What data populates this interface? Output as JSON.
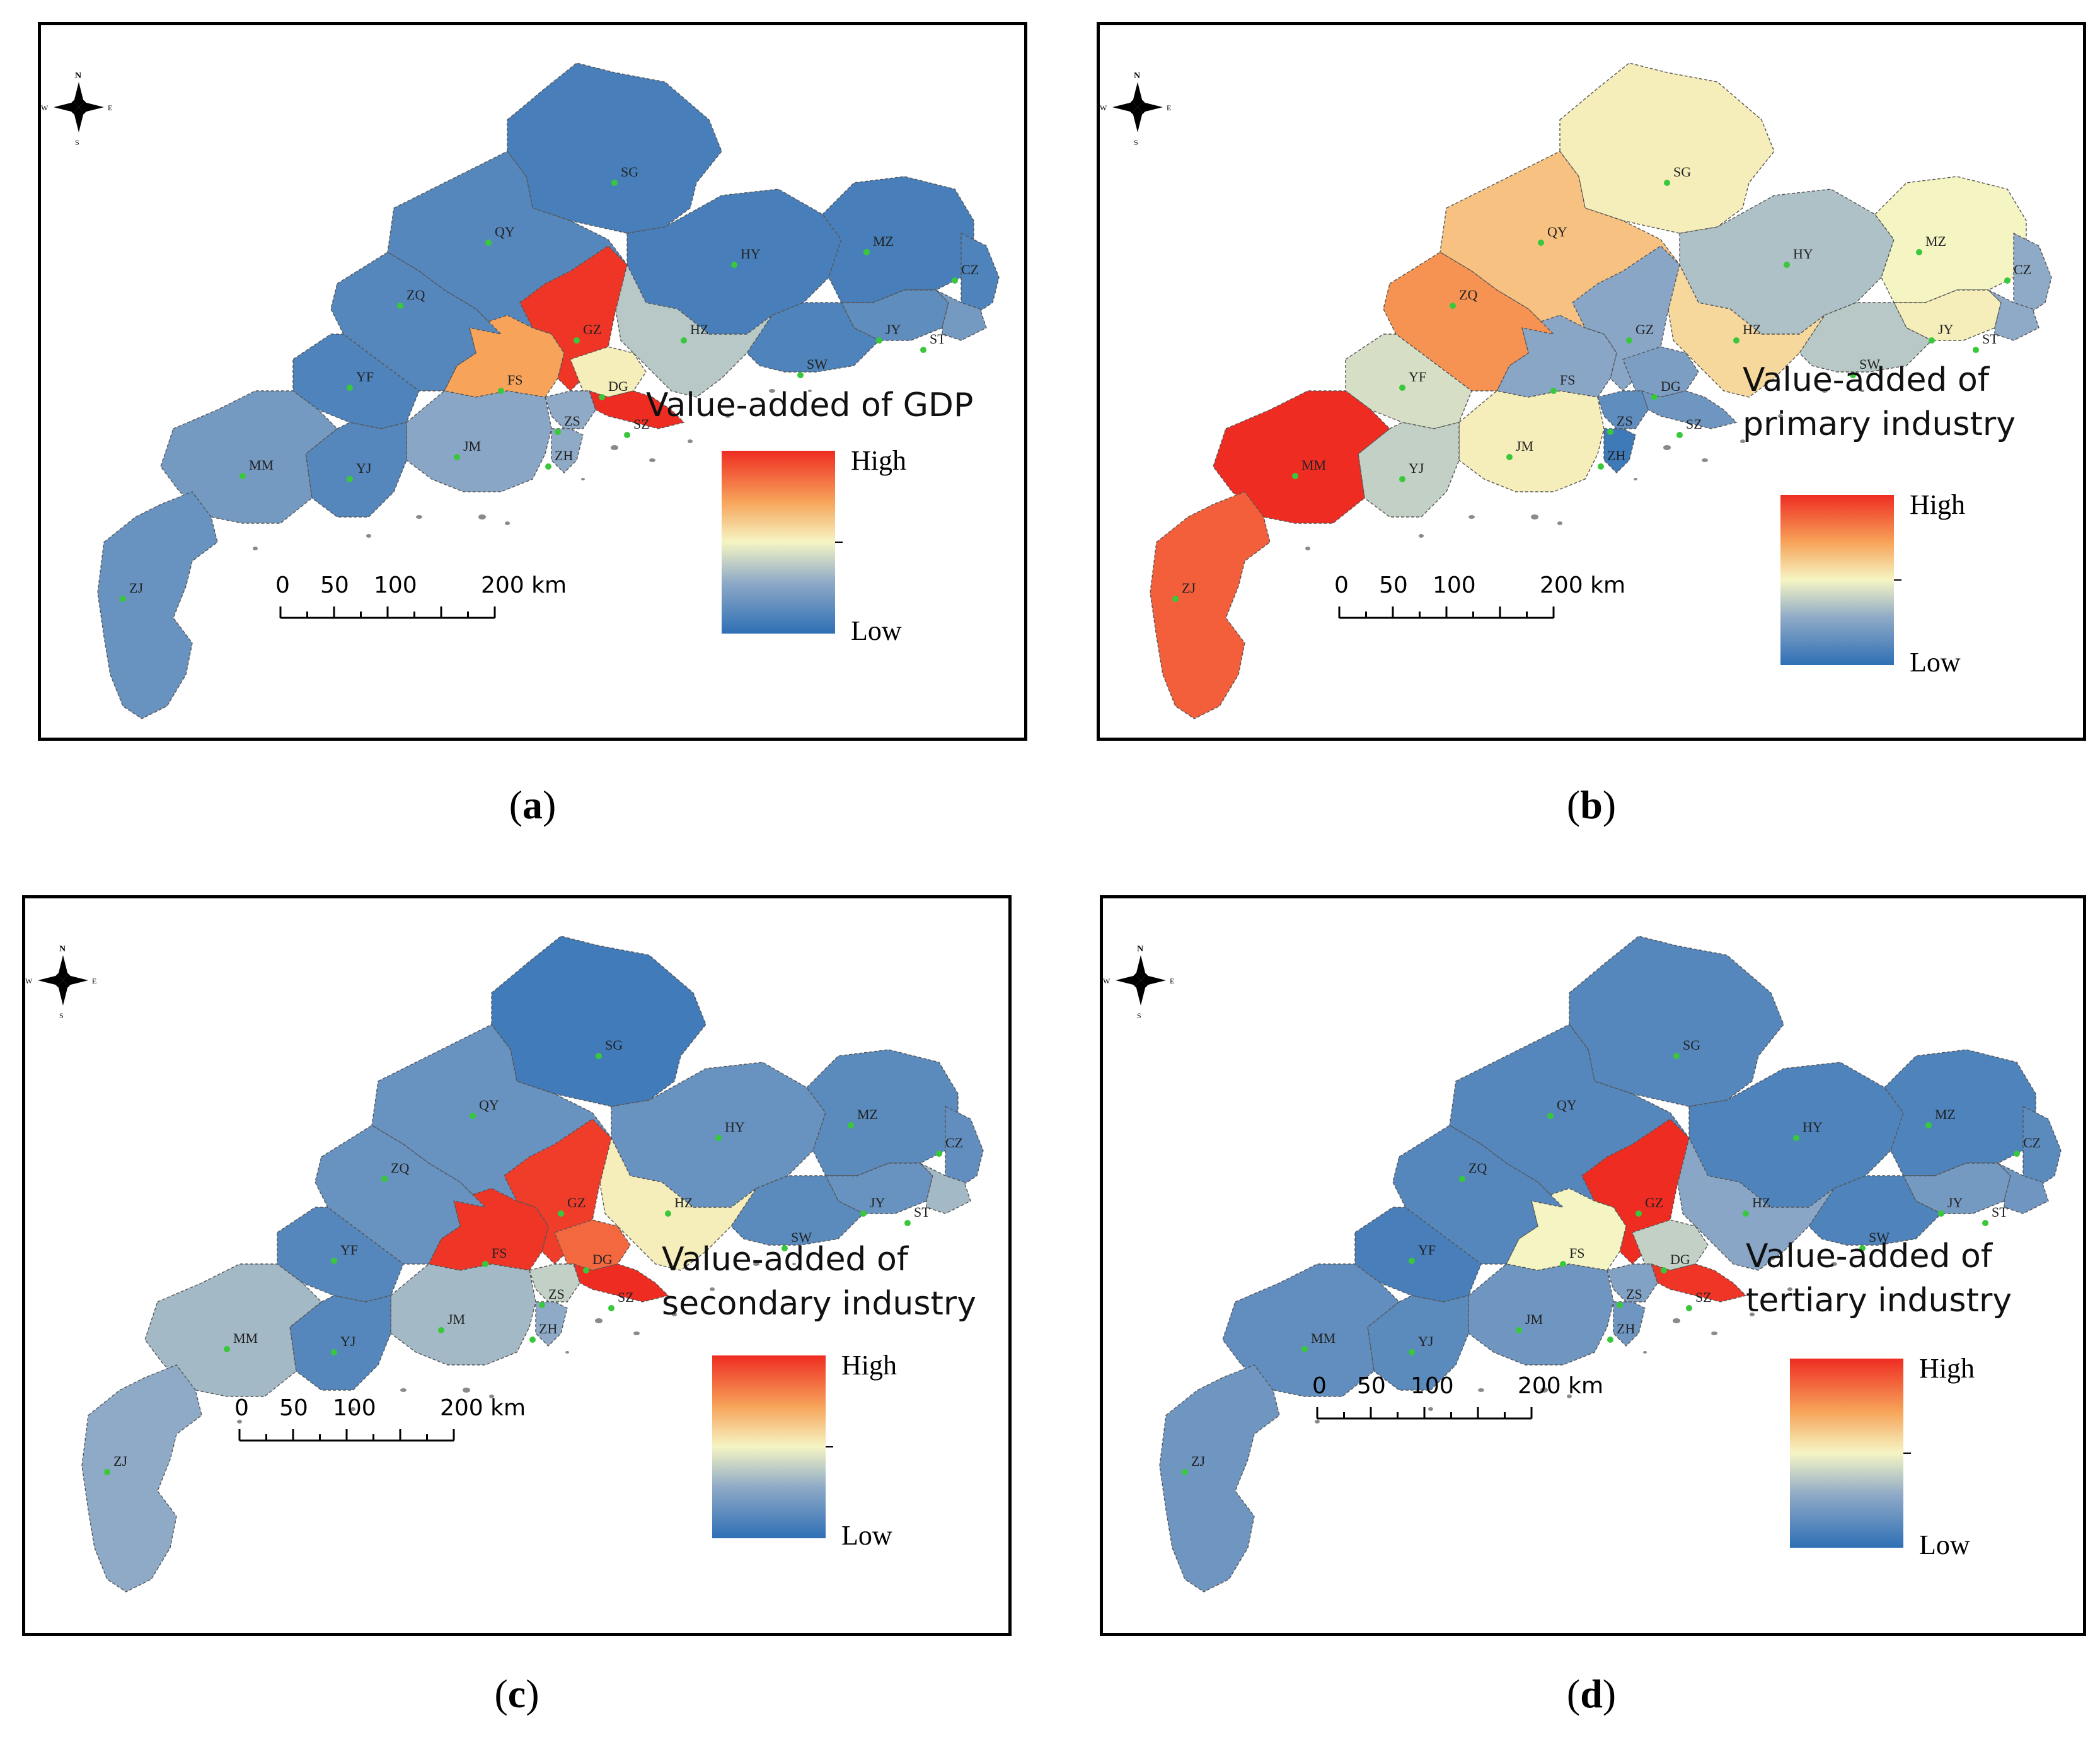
{
  "panels": [
    {
      "id": "a",
      "caption_letter": "a",
      "title_lines": [
        "Value-added of GDP"
      ],
      "legend_high": "High",
      "legend_low": "Low",
      "scale_labels": [
        "0",
        "50",
        "100",
        "200 km"
      ],
      "levels": {
        "ZJ": 0.18,
        "MM": 0.22,
        "YJ": 0.12,
        "JM": 0.28,
        "YF": 0.1,
        "ZQ": 0.12,
        "QY": 0.12,
        "SG": 0.08,
        "HY": 0.08,
        "MZ": 0.08,
        "CZ": 0.1,
        "JY": 0.15,
        "ST": 0.22,
        "SW": 0.1,
        "HZ": 0.38,
        "GZ": 0.98,
        "FS": 0.72,
        "DG": 0.52,
        "SZ": 1.0,
        "ZS": 0.3,
        "ZH": 0.3
      }
    },
    {
      "id": "b",
      "caption_letter": "b",
      "title_lines": [
        "Value-added of",
        "primary industry"
      ],
      "legend_high": "High",
      "legend_low": "Low",
      "scale_labels": [
        "0",
        "50",
        "100",
        "200 km"
      ],
      "levels": {
        "ZJ": 0.88,
        "MM": 1.0,
        "YJ": 0.4,
        "JM": 0.52,
        "YF": 0.44,
        "ZQ": 0.76,
        "QY": 0.64,
        "SG": 0.52,
        "HY": 0.36,
        "MZ": 0.5,
        "CZ": 0.3,
        "JY": 0.52,
        "ST": 0.3,
        "SW": 0.38,
        "HZ": 0.58,
        "GZ": 0.28,
        "FS": 0.28,
        "DG": 0.24,
        "SZ": 0.2,
        "ZS": 0.15,
        "ZH": 0.05
      }
    },
    {
      "id": "c",
      "caption_letter": "c",
      "title_lines": [
        "Value-added of",
        "secondary industry"
      ],
      "legend_high": "High",
      "legend_low": "Low",
      "scale_labels": [
        "0",
        "50",
        "100",
        "200 km"
      ],
      "levels": {
        "ZJ": 0.3,
        "MM": 0.34,
        "YJ": 0.12,
        "JM": 0.34,
        "YF": 0.12,
        "ZQ": 0.18,
        "QY": 0.18,
        "SG": 0.06,
        "HY": 0.18,
        "MZ": 0.14,
        "CZ": 0.16,
        "JY": 0.18,
        "ST": 0.34,
        "SW": 0.14,
        "HZ": 0.52,
        "GZ": 0.96,
        "FS": 0.98,
        "DG": 0.86,
        "SZ": 1.0,
        "ZS": 0.4,
        "ZH": 0.3
      }
    },
    {
      "id": "d",
      "caption_letter": "d",
      "title_lines": [
        "Value-added of",
        "tertiary industry"
      ],
      "legend_high": "High",
      "legend_low": "Low",
      "scale_labels": [
        "0",
        "50",
        "100",
        "200 km"
      ],
      "levels": {
        "ZJ": 0.2,
        "MM": 0.16,
        "YJ": 0.14,
        "JM": 0.2,
        "YF": 0.08,
        "ZQ": 0.12,
        "QY": 0.12,
        "SG": 0.12,
        "HY": 0.1,
        "MZ": 0.1,
        "CZ": 0.14,
        "JY": 0.22,
        "ST": 0.2,
        "SW": 0.1,
        "HZ": 0.28,
        "GZ": 1.0,
        "FS": 0.5,
        "DG": 0.4,
        "SZ": 0.98,
        "ZS": 0.26,
        "ZH": 0.2
      }
    }
  ],
  "compass": {
    "n": "N",
    "s": "S",
    "e": "E",
    "w": "W"
  },
  "colors": {
    "low": "#2e6fb5",
    "lowmid": "#8faac7",
    "mid": "#f5f5c4",
    "highmid": "#f7a45a",
    "high": "#ee2c22",
    "dot": "#39c83c",
    "outline": "#555555"
  }
}
